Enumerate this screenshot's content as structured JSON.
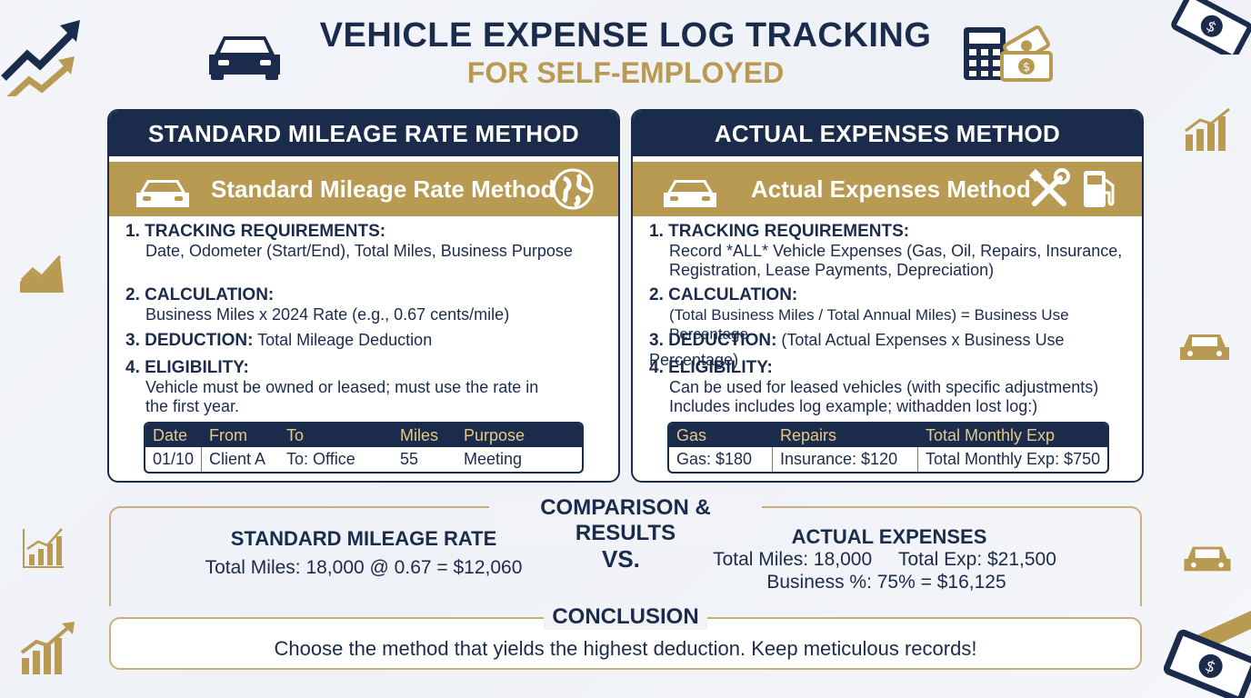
{
  "header": {
    "title": "VEHICLE EXPENSE LOG TRACKING",
    "subtitle": "FOR SELF-EMPLOYED"
  },
  "colors": {
    "navy": "#1b2b4c",
    "gold": "#b89a52"
  },
  "icons": [
    "car-icon",
    "calculator-icon",
    "money-icon",
    "globe-icon",
    "tools-icon",
    "fuel-pump-icon",
    "growth-chart-icon",
    "dollar-bill-icon"
  ],
  "standard": {
    "heading": "STANDARD MILEAGE RATE METHOD",
    "band": "Standard Mileage Rate Method",
    "items": [
      {
        "label": "1. TRACKING REQUIREMENTS:",
        "text": "Date, Odometer (Start/End), Total Miles, Business Purpose"
      },
      {
        "label": "2. CALCULATION:",
        "text": "Business Miles x 2024 Rate (e.g., 0.67 cents/mile)"
      },
      {
        "label": "3. DEDUCTION:",
        "text": "Total Mileage Deduction"
      },
      {
        "label": "4. ELIGIBILITY:",
        "text1": "Vehicle must be owned or leased; must use the rate in",
        "text2": "the first year."
      }
    ],
    "table": {
      "headers": [
        "Date",
        "From",
        "To",
        "Miles",
        "Purpose"
      ],
      "row": [
        "01/10",
        "Client A",
        "To:  Office",
        "55",
        "Meeting"
      ]
    }
  },
  "actual": {
    "heading": "ACTUAL EXPENSES METHOD",
    "band": "Actual Expenses Method",
    "items": [
      {
        "label": "1. TRACKING REQUIREMENTS:",
        "text1": "Record *ALL* Vehicle Expenses (Gas, Oil, Repairs, Insurance,",
        "text2": "Registration, Lease Payments, Depreciation)"
      },
      {
        "label": "2. CALCULATION:",
        "text": "(Total Business Miles / Total Annual Miles) = Business Use Percentage"
      },
      {
        "label": "3. DEDUCTION:",
        "text": "(Total Actual Expenses x Business Use Percentage)"
      },
      {
        "label": "4. ELIGIBILITY:",
        "text1": "Can be used for leased vehicles (with specific adjustments)",
        "text2": "Includes  includes log example;  withadden lost log:)"
      }
    ],
    "table": {
      "headers": [
        "Gas",
        "Repairs",
        "Total Monthly Exp"
      ],
      "row": [
        "Gas:  $180",
        "Insurance:  $120",
        "Total Monthly Exp: $750"
      ]
    }
  },
  "comparison": {
    "title": "COMPARISON & RESULTS",
    "left_heading": "STANDARD MILEAGE RATE",
    "left_text": "Total Miles: 18,000 @ 0.67 = $12,060",
    "vs": "VS.",
    "right_heading": "ACTUAL EXPENSES",
    "right_text1": "Total Miles: 18,000     Total Exp: $21,500",
    "right_text2": "Business %: 75% = $16,125"
  },
  "conclusion": {
    "title": "CONCLUSION",
    "text": "Choose the method that yields the highest deduction. Keep meticulous records!"
  }
}
